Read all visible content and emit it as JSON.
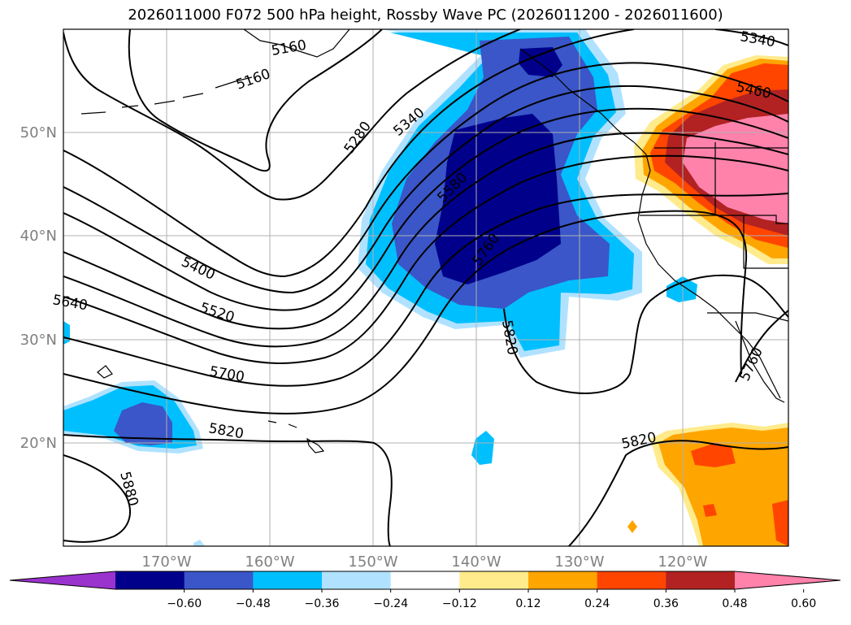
{
  "title": "2026011000 F072 500 hPa height, Rossby Wave PC (2026011200 - 2026011600)",
  "latitude_labels": [
    "50°N",
    "40°N",
    "30°N",
    "20°N"
  ],
  "longitude_labels": [
    "170°W",
    "160°W",
    "150°W",
    "140°W",
    "130°W",
    "120°W"
  ],
  "colorbar": {
    "tick_labels": [
      "-0.60",
      "-0.48",
      "-0.36",
      "-0.24",
      "-0.12",
      "0.12",
      "0.24",
      "0.36",
      "0.48",
      "0.60"
    ],
    "colors": [
      "#9a32cd",
      "#00008b",
      "#3a56c8",
      "#00bfff",
      "#b0e2ff",
      "#ffffff",
      "#ffeb8c",
      "#ffa500",
      "#ff4500",
      "#b22222",
      "#ff82ab"
    ]
  },
  "contour_labels": [
    "5160",
    "5160",
    "5340",
    "5280",
    "5340",
    "5460",
    "5580",
    "5760",
    "5400",
    "5520",
    "5640",
    "5700",
    "5820",
    "5820",
    "5880",
    "5820",
    "5760"
  ],
  "colors": {
    "contour": "#000000",
    "coastline": "#000000",
    "gridline": "#b0b0b0",
    "axis_label": "#808080"
  }
}
